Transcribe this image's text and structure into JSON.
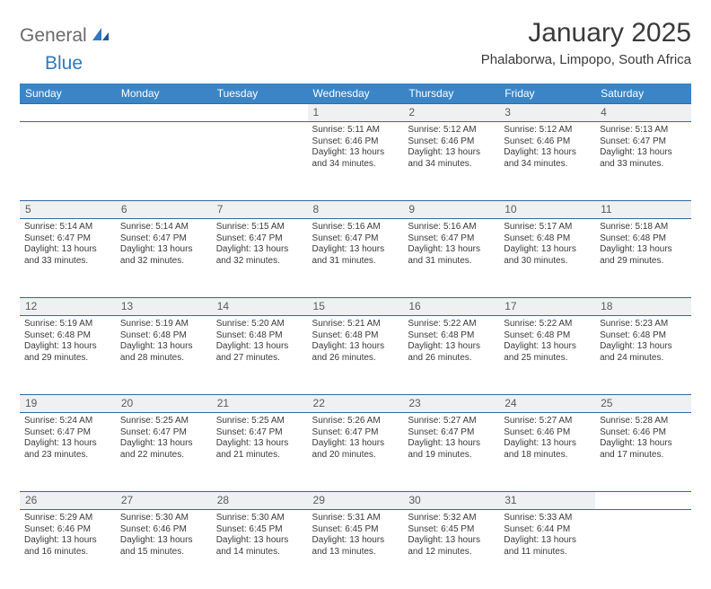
{
  "brand": {
    "part1": "General",
    "part2": "Blue"
  },
  "title": "January 2025",
  "location": "Phalaborwa, Limpopo, South Africa",
  "colors": {
    "header_bg": "#3b85c6",
    "header_text": "#ffffff",
    "row_border": "#2f6aa3",
    "daynum_bg": "#eef0f2",
    "text": "#3a3a3a",
    "brand_grey": "#6a6a6a",
    "brand_blue": "#2f7ac0",
    "page_bg": "#ffffff"
  },
  "day_headers": [
    "Sunday",
    "Monday",
    "Tuesday",
    "Wednesday",
    "Thursday",
    "Friday",
    "Saturday"
  ],
  "weeks": [
    {
      "nums": [
        "",
        "",
        "",
        "1",
        "2",
        "3",
        "4"
      ],
      "cells": [
        {
          "sunrise": "",
          "sunset": "",
          "daylight": ""
        },
        {
          "sunrise": "",
          "sunset": "",
          "daylight": ""
        },
        {
          "sunrise": "",
          "sunset": "",
          "daylight": ""
        },
        {
          "sunrise": "Sunrise: 5:11 AM",
          "sunset": "Sunset: 6:46 PM",
          "daylight": "Daylight: 13 hours and 34 minutes."
        },
        {
          "sunrise": "Sunrise: 5:12 AM",
          "sunset": "Sunset: 6:46 PM",
          "daylight": "Daylight: 13 hours and 34 minutes."
        },
        {
          "sunrise": "Sunrise: 5:12 AM",
          "sunset": "Sunset: 6:46 PM",
          "daylight": "Daylight: 13 hours and 34 minutes."
        },
        {
          "sunrise": "Sunrise: 5:13 AM",
          "sunset": "Sunset: 6:47 PM",
          "daylight": "Daylight: 13 hours and 33 minutes."
        }
      ]
    },
    {
      "nums": [
        "5",
        "6",
        "7",
        "8",
        "9",
        "10",
        "11"
      ],
      "cells": [
        {
          "sunrise": "Sunrise: 5:14 AM",
          "sunset": "Sunset: 6:47 PM",
          "daylight": "Daylight: 13 hours and 33 minutes."
        },
        {
          "sunrise": "Sunrise: 5:14 AM",
          "sunset": "Sunset: 6:47 PM",
          "daylight": "Daylight: 13 hours and 32 minutes."
        },
        {
          "sunrise": "Sunrise: 5:15 AM",
          "sunset": "Sunset: 6:47 PM",
          "daylight": "Daylight: 13 hours and 32 minutes."
        },
        {
          "sunrise": "Sunrise: 5:16 AM",
          "sunset": "Sunset: 6:47 PM",
          "daylight": "Daylight: 13 hours and 31 minutes."
        },
        {
          "sunrise": "Sunrise: 5:16 AM",
          "sunset": "Sunset: 6:47 PM",
          "daylight": "Daylight: 13 hours and 31 minutes."
        },
        {
          "sunrise": "Sunrise: 5:17 AM",
          "sunset": "Sunset: 6:48 PM",
          "daylight": "Daylight: 13 hours and 30 minutes."
        },
        {
          "sunrise": "Sunrise: 5:18 AM",
          "sunset": "Sunset: 6:48 PM",
          "daylight": "Daylight: 13 hours and 29 minutes."
        }
      ]
    },
    {
      "nums": [
        "12",
        "13",
        "14",
        "15",
        "16",
        "17",
        "18"
      ],
      "cells": [
        {
          "sunrise": "Sunrise: 5:19 AM",
          "sunset": "Sunset: 6:48 PM",
          "daylight": "Daylight: 13 hours and 29 minutes."
        },
        {
          "sunrise": "Sunrise: 5:19 AM",
          "sunset": "Sunset: 6:48 PM",
          "daylight": "Daylight: 13 hours and 28 minutes."
        },
        {
          "sunrise": "Sunrise: 5:20 AM",
          "sunset": "Sunset: 6:48 PM",
          "daylight": "Daylight: 13 hours and 27 minutes."
        },
        {
          "sunrise": "Sunrise: 5:21 AM",
          "sunset": "Sunset: 6:48 PM",
          "daylight": "Daylight: 13 hours and 26 minutes."
        },
        {
          "sunrise": "Sunrise: 5:22 AM",
          "sunset": "Sunset: 6:48 PM",
          "daylight": "Daylight: 13 hours and 26 minutes."
        },
        {
          "sunrise": "Sunrise: 5:22 AM",
          "sunset": "Sunset: 6:48 PM",
          "daylight": "Daylight: 13 hours and 25 minutes."
        },
        {
          "sunrise": "Sunrise: 5:23 AM",
          "sunset": "Sunset: 6:48 PM",
          "daylight": "Daylight: 13 hours and 24 minutes."
        }
      ]
    },
    {
      "nums": [
        "19",
        "20",
        "21",
        "22",
        "23",
        "24",
        "25"
      ],
      "cells": [
        {
          "sunrise": "Sunrise: 5:24 AM",
          "sunset": "Sunset: 6:47 PM",
          "daylight": "Daylight: 13 hours and 23 minutes."
        },
        {
          "sunrise": "Sunrise: 5:25 AM",
          "sunset": "Sunset: 6:47 PM",
          "daylight": "Daylight: 13 hours and 22 minutes."
        },
        {
          "sunrise": "Sunrise: 5:25 AM",
          "sunset": "Sunset: 6:47 PM",
          "daylight": "Daylight: 13 hours and 21 minutes."
        },
        {
          "sunrise": "Sunrise: 5:26 AM",
          "sunset": "Sunset: 6:47 PM",
          "daylight": "Daylight: 13 hours and 20 minutes."
        },
        {
          "sunrise": "Sunrise: 5:27 AM",
          "sunset": "Sunset: 6:47 PM",
          "daylight": "Daylight: 13 hours and 19 minutes."
        },
        {
          "sunrise": "Sunrise: 5:27 AM",
          "sunset": "Sunset: 6:46 PM",
          "daylight": "Daylight: 13 hours and 18 minutes."
        },
        {
          "sunrise": "Sunrise: 5:28 AM",
          "sunset": "Sunset: 6:46 PM",
          "daylight": "Daylight: 13 hours and 17 minutes."
        }
      ]
    },
    {
      "nums": [
        "26",
        "27",
        "28",
        "29",
        "30",
        "31",
        ""
      ],
      "cells": [
        {
          "sunrise": "Sunrise: 5:29 AM",
          "sunset": "Sunset: 6:46 PM",
          "daylight": "Daylight: 13 hours and 16 minutes."
        },
        {
          "sunrise": "Sunrise: 5:30 AM",
          "sunset": "Sunset: 6:46 PM",
          "daylight": "Daylight: 13 hours and 15 minutes."
        },
        {
          "sunrise": "Sunrise: 5:30 AM",
          "sunset": "Sunset: 6:45 PM",
          "daylight": "Daylight: 13 hours and 14 minutes."
        },
        {
          "sunrise": "Sunrise: 5:31 AM",
          "sunset": "Sunset: 6:45 PM",
          "daylight": "Daylight: 13 hours and 13 minutes."
        },
        {
          "sunrise": "Sunrise: 5:32 AM",
          "sunset": "Sunset: 6:45 PM",
          "daylight": "Daylight: 13 hours and 12 minutes."
        },
        {
          "sunrise": "Sunrise: 5:33 AM",
          "sunset": "Sunset: 6:44 PM",
          "daylight": "Daylight: 13 hours and 11 minutes."
        },
        {
          "sunrise": "",
          "sunset": "",
          "daylight": ""
        }
      ]
    }
  ]
}
